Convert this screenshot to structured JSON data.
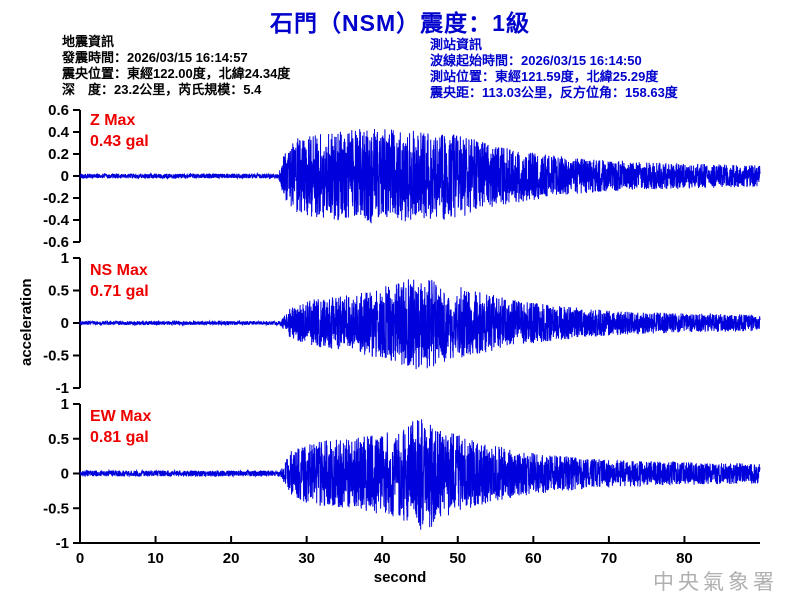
{
  "title": "石門（NSM）震度：1級",
  "colors": {
    "accent_blue": "#0000cc",
    "waveform_blue": "#0000dd",
    "label_red": "#ee0000",
    "axis_black": "#000000",
    "watermark_gray": "#b0b0b0"
  },
  "eq_info": {
    "lines": [
      "地震資訊",
      "發震時間：2026/03/15 16:14:57",
      "震央位置：東經122.00度，北緯24.34度",
      "深　度：23.2公里，芮氏規模：5.4"
    ]
  },
  "station_info": {
    "lines": [
      "測站資訊",
      "波線起始時間：2026/03/15 16:14:50",
      "測站位置：東經121.59度，北緯25.29度",
      "震央距：113.03公里，反方位角：158.63度"
    ]
  },
  "watermark": "中央氣象署",
  "chart_data": {
    "type": "line",
    "title": "石門（NSM）震度：1級",
    "xlabel": "second",
    "ylabel": "acceleration",
    "xlim": [
      0,
      90
    ],
    "x_ticks": [
      0,
      10,
      20,
      30,
      40,
      50,
      60,
      70,
      80
    ],
    "grid": false,
    "legend": "none",
    "series": [
      {
        "name": "Z",
        "max_label": "Z Max",
        "max_value_label": "0.43 gal",
        "max_gal": 0.43,
        "ylim": [
          -0.6,
          0.6
        ],
        "y_ticks": [
          0.6,
          0.4,
          0.2,
          0,
          -0.2,
          -0.4,
          -0.6
        ],
        "onset_s": 26.3,
        "peak_s": 38,
        "seed": 101,
        "envelope": [
          [
            0,
            0.05
          ],
          [
            26.3,
            0.05
          ],
          [
            27,
            0.45
          ],
          [
            28.5,
            0.8
          ],
          [
            33,
            0.9
          ],
          [
            38,
            1.0
          ],
          [
            44,
            0.95
          ],
          [
            50,
            0.9
          ],
          [
            55,
            0.62
          ],
          [
            60,
            0.5
          ],
          [
            65,
            0.38
          ],
          [
            72,
            0.3
          ],
          [
            80,
            0.26
          ],
          [
            90,
            0.22
          ]
        ]
      },
      {
        "name": "NS",
        "max_label": "NS Max",
        "max_value_label": "0.71 gal",
        "max_gal": 0.71,
        "ylim": [
          -1,
          1
        ],
        "y_ticks": [
          1,
          0.5,
          0,
          -0.5,
          -1
        ],
        "onset_s": 26.5,
        "peak_s": 45,
        "seed": 202,
        "envelope": [
          [
            0,
            0.04
          ],
          [
            26.5,
            0.04
          ],
          [
            28,
            0.35
          ],
          [
            31,
            0.5
          ],
          [
            36,
            0.6
          ],
          [
            41,
            0.8
          ],
          [
            45,
            1.0
          ],
          [
            48,
            0.85
          ],
          [
            52,
            0.7
          ],
          [
            57,
            0.5
          ],
          [
            62,
            0.38
          ],
          [
            70,
            0.26
          ],
          [
            80,
            0.2
          ],
          [
            90,
            0.17
          ]
        ]
      },
      {
        "name": "EW",
        "max_label": "EW Max",
        "max_value_label": "0.81 gal",
        "max_gal": 0.81,
        "ylim": [
          -1,
          1
        ],
        "y_ticks": [
          1,
          0.5,
          0,
          -0.5,
          -1
        ],
        "onset_s": 26.5,
        "peak_s": 45.5,
        "seed": 303,
        "envelope": [
          [
            0,
            0.05
          ],
          [
            26.5,
            0.05
          ],
          [
            28,
            0.4
          ],
          [
            31,
            0.55
          ],
          [
            36,
            0.6
          ],
          [
            42,
            0.75
          ],
          [
            45.5,
            1.0
          ],
          [
            49,
            0.7
          ],
          [
            54,
            0.5
          ],
          [
            60,
            0.35
          ],
          [
            68,
            0.25
          ],
          [
            78,
            0.2
          ],
          [
            90,
            0.17
          ]
        ]
      }
    ]
  }
}
